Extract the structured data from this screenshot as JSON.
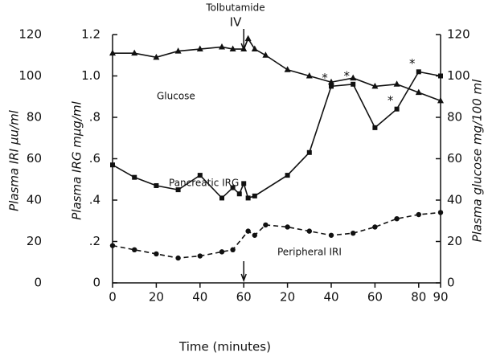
{
  "chart_data": {
    "type": "line",
    "x_label": "Time (minutes)",
    "y_label": "Plasma IRG mμg/ml",
    "y2_label": "Plasma glucose mg/100 ml",
    "y3_label": "Plasma IRI μu/ml",
    "event_label": "Tolbutamide",
    "event_sublabel": "IV",
    "event_x": 60,
    "xlim": [
      0,
      150
    ],
    "xticks": [
      0,
      20,
      40,
      60,
      {
        "value": 80,
        "label": "20"
      },
      {
        "value": 100,
        "label": "40"
      },
      {
        "value": 120,
        "label": "60"
      },
      {
        "value": 140,
        "label": "80"
      },
      {
        "value": 150,
        "label": "90"
      }
    ],
    "ylim": [
      0,
      1.2
    ],
    "yticks": [
      0,
      {
        "value": 0.2,
        "label": ".2"
      },
      {
        "value": 0.4,
        "label": ".4"
      },
      {
        "value": 0.6,
        "label": ".6"
      },
      {
        "value": 0.8,
        "label": ".8"
      },
      {
        "value": 1.0,
        "label": "1.0"
      },
      {
        "value": 1.2,
        "label": "1.2"
      }
    ],
    "y2lim": [
      0,
      120
    ],
    "y2ticks": [
      0,
      20,
      40,
      60,
      80,
      100,
      120
    ],
    "y3lim": [
      0,
      120
    ],
    "y3ticks": [
      0,
      20,
      40,
      60,
      80,
      100,
      120
    ],
    "series": [
      {
        "name": "Glucose",
        "axis": "y2",
        "marker": "triangle",
        "dashed": false,
        "color": "#111",
        "x": [
          0,
          10,
          20,
          30,
          40,
          50,
          55,
          60,
          62,
          65,
          70,
          80,
          90,
          100,
          110,
          120,
          130,
          140,
          150
        ],
        "values": [
          111,
          111,
          109,
          112,
          113,
          114,
          113,
          113,
          118,
          113,
          110,
          103,
          100,
          97,
          99,
          95,
          96,
          92,
          88
        ]
      },
      {
        "name": "Pancreatic IRG",
        "axis": "y",
        "marker": "square",
        "dashed": false,
        "color": "#111",
        "x": [
          0,
          10,
          20,
          30,
          40,
          50,
          55,
          58,
          60,
          62,
          65,
          80,
          90,
          100,
          110,
          120,
          130,
          140,
          150
        ],
        "values": [
          0.57,
          0.51,
          0.47,
          0.45,
          0.52,
          0.41,
          0.46,
          0.43,
          0.48,
          0.41,
          0.42,
          0.52,
          0.63,
          0.95,
          0.96,
          0.75,
          0.84,
          1.02,
          1.0
        ]
      },
      {
        "name": "Peripheral IRI",
        "axis": "y3",
        "marker": "circle",
        "dashed": true,
        "color": "#111",
        "x": [
          0,
          10,
          20,
          30,
          40,
          50,
          55,
          62,
          65,
          70,
          80,
          90,
          100,
          110,
          120,
          130,
          140,
          150
        ],
        "values": [
          18,
          16,
          14,
          12,
          13,
          15,
          16,
          25,
          23,
          28,
          27,
          25,
          23,
          24,
          27,
          31,
          33,
          34
        ]
      }
    ],
    "annotations": [
      {
        "text": "*",
        "series": 1,
        "x": 100
      },
      {
        "text": "*",
        "series": 1,
        "x": 110
      },
      {
        "text": "*",
        "series": 1,
        "x": 130
      },
      {
        "text": "*",
        "series": 1,
        "x": 140
      }
    ]
  }
}
